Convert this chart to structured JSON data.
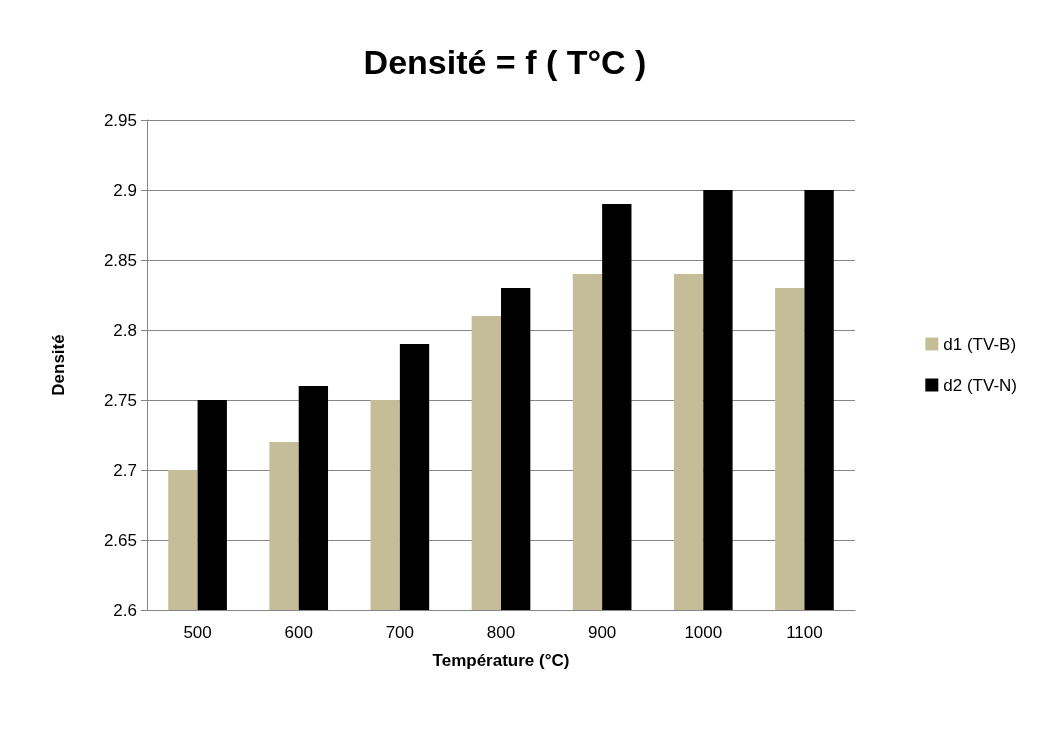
{
  "chart_data": {
    "type": "bar",
    "title": "Densité = f ( T°C )",
    "xlabel": "Température (°C)",
    "ylabel": "Densité",
    "categories": [
      "500",
      "600",
      "700",
      "800",
      "900",
      "1000",
      "1100"
    ],
    "series": [
      {
        "name": "d1 (TV-B)",
        "color": "#c4bd97",
        "values": [
          2.7,
          2.72,
          2.75,
          2.81,
          2.84,
          2.84,
          2.83
        ]
      },
      {
        "name": "d2 (TV-N)",
        "color": "#000000",
        "values": [
          2.75,
          2.76,
          2.79,
          2.83,
          2.89,
          2.9,
          2.9
        ]
      }
    ],
    "ylim": [
      2.6,
      2.95
    ],
    "yticks": [
      2.6,
      2.65,
      2.7,
      2.75,
      2.8,
      2.85,
      2.9,
      2.95
    ],
    "grid": "y",
    "legend": "right"
  }
}
